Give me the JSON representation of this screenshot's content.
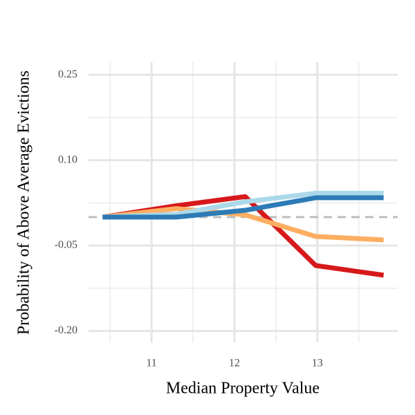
{
  "chart_data": {
    "type": "line",
    "x_label": "Median Property Value",
    "y_label": "Probability of Above Average Evictions",
    "x": [
      10.41,
      11.3,
      12.13,
      12.98,
      13.8
    ],
    "series": [
      {
        "color": "#d7191c",
        "values": [
          0.0,
          0.02,
          0.036,
          -0.085,
          -0.102
        ]
      },
      {
        "color": "#fdae61",
        "values": [
          0.0,
          0.015,
          0.004,
          -0.034,
          -0.04
        ]
      },
      {
        "color": "#abd9e9",
        "values": [
          0.0,
          0.005,
          0.027,
          0.042,
          0.042
        ]
      },
      {
        "color": "#2c7bb6",
        "values": [
          0.0,
          0.0,
          0.012,
          0.034,
          0.034
        ]
      }
    ],
    "xlim": [
      10.24,
      13.97
    ],
    "ylim": [
      -0.22,
      0.272
    ],
    "xticks": [
      11,
      12,
      13
    ],
    "yticks": [
      {
        "value": 0.25,
        "label": "0.25"
      },
      {
        "value": 0.1,
        "label": "0.10"
      },
      {
        "value": -0.05,
        "label": "-0.05"
      },
      {
        "value": -0.2,
        "label": "-0.20"
      }
    ],
    "xminor": [
      10.5,
      11.5,
      12.5,
      13.5
    ],
    "yminor": [
      0.175,
      0.025,
      -0.125
    ],
    "hline": 0,
    "grid": true
  }
}
